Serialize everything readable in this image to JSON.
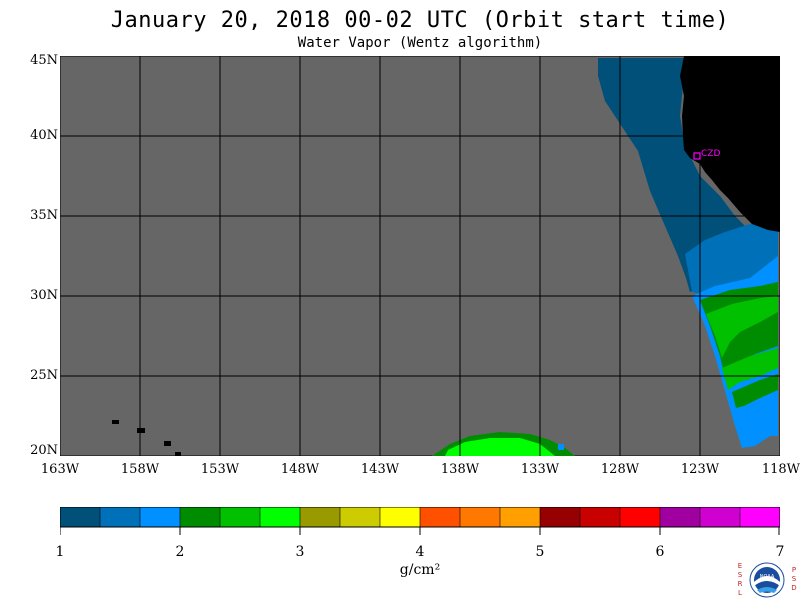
{
  "title": "January 20, 2018  00-02 UTC  (Orbit start time)",
  "subtitle": "Water Vapor (Wentz algorithm)",
  "map": {
    "lat_labels": [
      "45N",
      "40N",
      "35N",
      "30N",
      "25N",
      "20N"
    ],
    "lon_labels": [
      "163W",
      "158W",
      "153W",
      "148W",
      "143W",
      "138W",
      "133W",
      "128W",
      "123W",
      "118W"
    ],
    "station_label": "CZD",
    "colors": {
      "no_data": "#666666",
      "land": "#000000",
      "grid": "#000000",
      "station": "#ff00ff"
    }
  },
  "colorbar": {
    "tick_labels": [
      "1",
      "2",
      "3",
      "4",
      "5",
      "6",
      "7"
    ],
    "units": "g/cm²",
    "colors": [
      "#00507a",
      "#0070b8",
      "#0090ff",
      "#008c00",
      "#00c000",
      "#00ff00",
      "#999900",
      "#cccc00",
      "#ffff00",
      "#ff5000",
      "#ff7800",
      "#ffa000",
      "#960000",
      "#c80000",
      "#ff0000",
      "#a000a0",
      "#d000d0",
      "#ff00ff"
    ]
  },
  "logo": {
    "left_letters": [
      "E",
      "S",
      "R",
      "L"
    ],
    "right_letters": [
      "P",
      "S",
      "D"
    ],
    "center_text": "NOAA"
  }
}
